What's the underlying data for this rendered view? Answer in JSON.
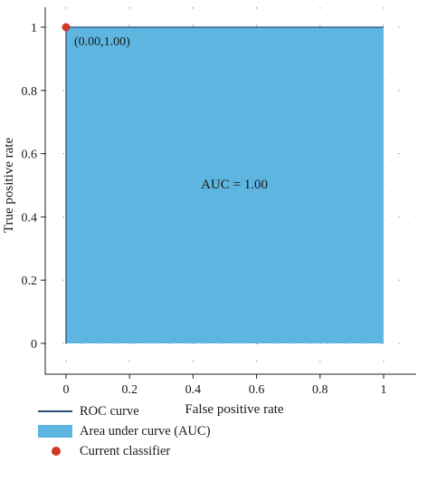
{
  "chart_data": {
    "type": "area",
    "x": [
      0,
      0,
      1
    ],
    "y": [
      0,
      1,
      1
    ],
    "xlabel": "False positive rate",
    "ylabel": "True positive rate",
    "xlim": [
      0,
      1
    ],
    "ylim": [
      0,
      1
    ],
    "xticks": [
      "0",
      "0.2",
      "0.4",
      "0.6",
      "0.8",
      "1"
    ],
    "yticks": [
      "0",
      "0.2",
      "0.4",
      "0.6",
      "0.8",
      "1"
    ],
    "grid": true,
    "series": [
      {
        "name": "ROC curve",
        "kind": "line",
        "color": "#2d4e78"
      },
      {
        "name": "Area under curve (AUC)",
        "kind": "area",
        "color": "#5db5e0"
      },
      {
        "name": "Current classifier",
        "kind": "point",
        "x": 0.0,
        "y": 1.0,
        "color": "#d23a26"
      }
    ],
    "annotations": {
      "auc_text": "AUC = 1.00",
      "point_label": "(0.00,1.00)"
    },
    "legend": "bottom-left"
  }
}
